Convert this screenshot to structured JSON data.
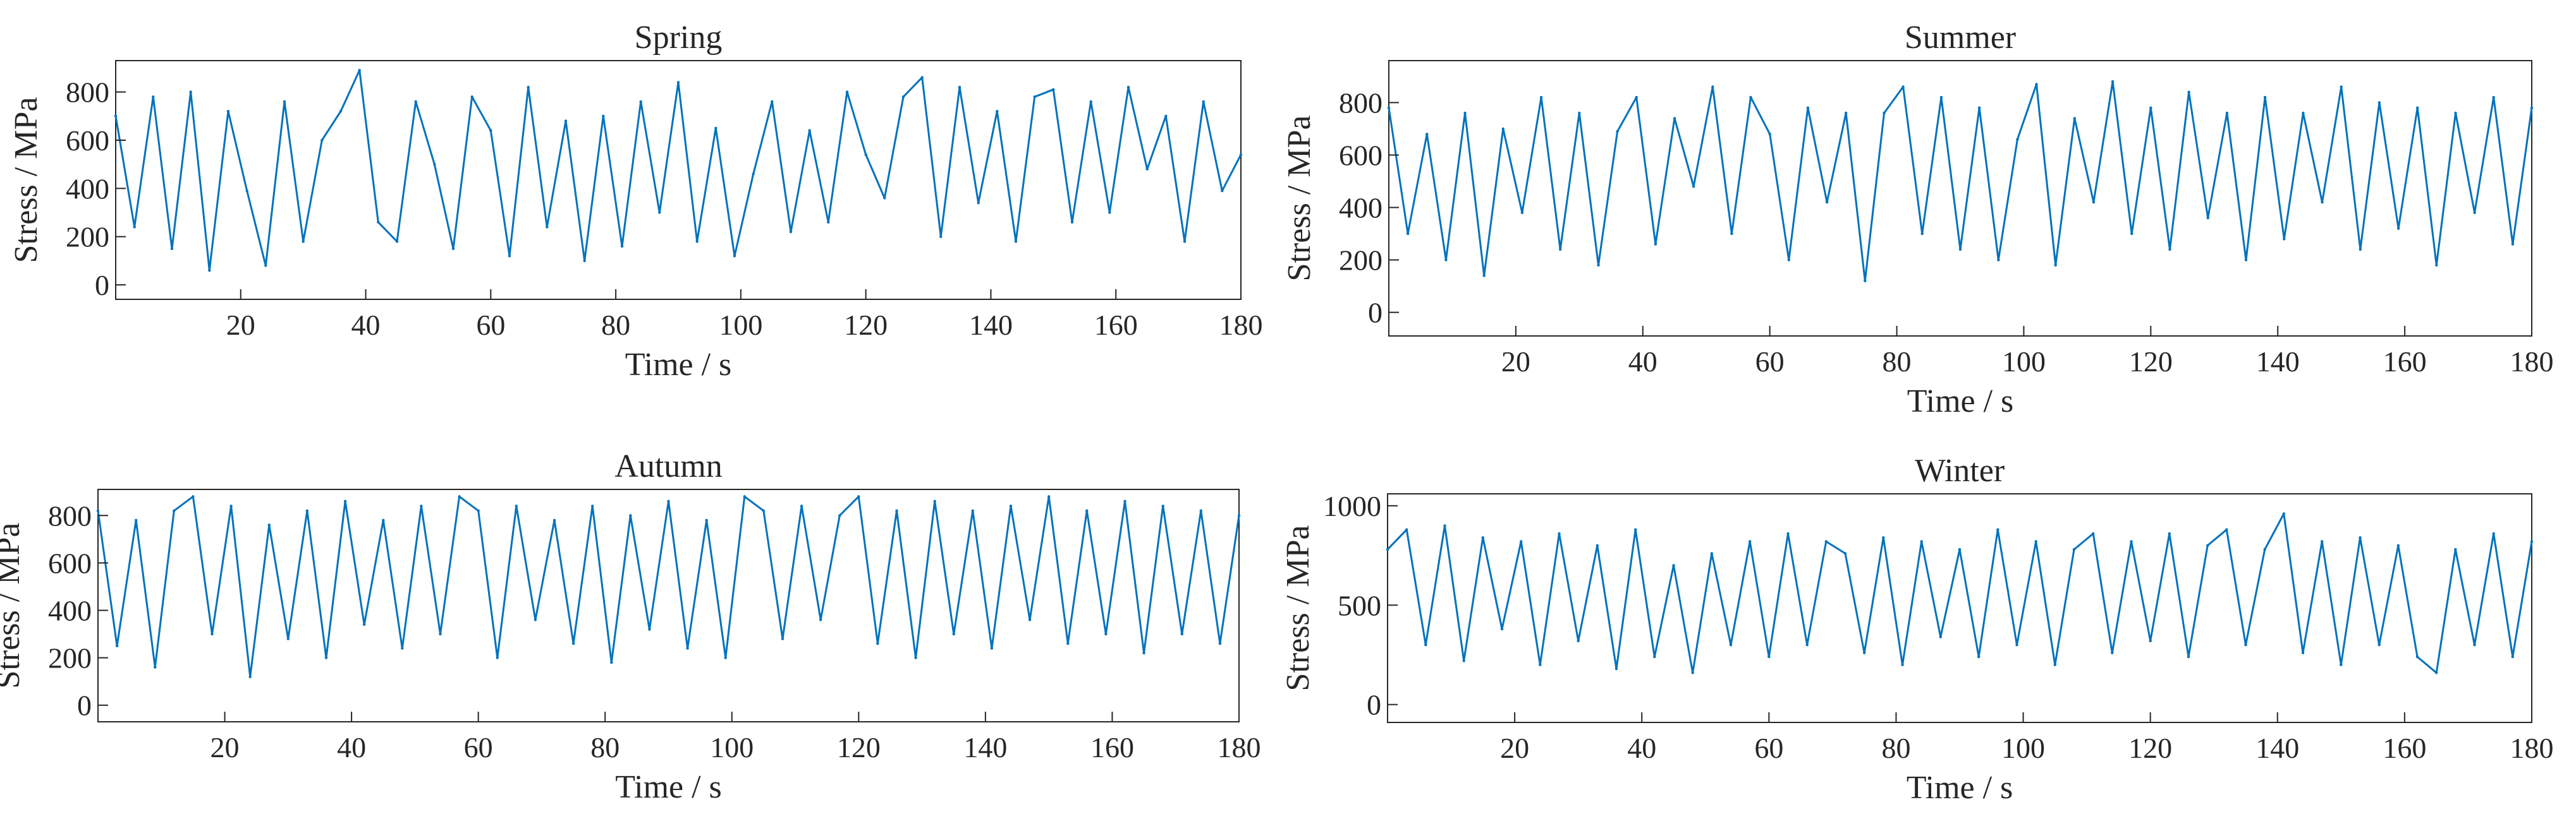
{
  "colors": {
    "series": "#0072BD",
    "axes": "#262626",
    "background": "#ffffff"
  },
  "chart_data": [
    {
      "type": "line",
      "title": "Spring",
      "xlabel": "Time / s",
      "ylabel": "Stress / MPa",
      "xlim": [
        0,
        180
      ],
      "ylim": [
        -60,
        930
      ],
      "xticks": [
        20,
        40,
        60,
        80,
        100,
        120,
        140,
        160,
        180
      ],
      "yticks": [
        0,
        200,
        400,
        600,
        800
      ],
      "grid": false,
      "series": [
        {
          "x": [
            0,
            3,
            6,
            9,
            12,
            15,
            18,
            21,
            24,
            27,
            30,
            33,
            36,
            39,
            42,
            45,
            48,
            51,
            54,
            57,
            60,
            63,
            66,
            69,
            72,
            75,
            78,
            81,
            84,
            87,
            90,
            93,
            96,
            99,
            102,
            105,
            108,
            111,
            114,
            117,
            120,
            123,
            126,
            129,
            132,
            135,
            138,
            141,
            144,
            147,
            150,
            153,
            156,
            159,
            162,
            165,
            168,
            171,
            174,
            177,
            180
          ],
          "y": [
            700,
            240,
            780,
            150,
            800,
            60,
            720,
            390,
            80,
            760,
            180,
            600,
            720,
            890,
            260,
            180,
            760,
            500,
            150,
            780,
            640,
            120,
            820,
            240,
            680,
            100,
            700,
            160,
            760,
            300,
            840,
            180,
            650,
            120,
            460,
            760,
            220,
            640,
            260,
            800,
            540,
            360,
            780,
            860,
            200,
            820,
            340,
            720,
            180,
            780,
            810,
            260,
            760,
            300,
            820,
            480,
            700,
            180,
            760,
            390,
            540
          ]
        }
      ]
    },
    {
      "type": "line",
      "title": "Summer",
      "xlabel": "Time / s",
      "ylabel": "Stress / MPa",
      "xlim": [
        0,
        180
      ],
      "ylim": [
        -90,
        960
      ],
      "xticks": [
        20,
        40,
        60,
        80,
        100,
        120,
        140,
        160,
        180
      ],
      "yticks": [
        0,
        200,
        400,
        600,
        800
      ],
      "grid": false,
      "series": [
        {
          "x": [
            0,
            3,
            6,
            9,
            12,
            15,
            18,
            21,
            24,
            27,
            30,
            33,
            36,
            39,
            42,
            45,
            48,
            51,
            54,
            57,
            60,
            63,
            66,
            69,
            72,
            75,
            78,
            81,
            84,
            87,
            90,
            93,
            96,
            99,
            102,
            105,
            108,
            111,
            114,
            117,
            120,
            123,
            126,
            129,
            132,
            135,
            138,
            141,
            144,
            147,
            150,
            153,
            156,
            159,
            162,
            165,
            168,
            171,
            174,
            177,
            180
          ],
          "y": [
            780,
            300,
            680,
            200,
            760,
            140,
            700,
            380,
            820,
            240,
            760,
            180,
            690,
            820,
            260,
            740,
            480,
            860,
            300,
            820,
            680,
            200,
            780,
            420,
            760,
            120,
            760,
            860,
            300,
            820,
            240,
            780,
            200,
            660,
            870,
            180,
            740,
            420,
            880,
            300,
            780,
            240,
            840,
            360,
            760,
            200,
            820,
            280,
            760,
            420,
            860,
            240,
            800,
            320,
            780,
            180,
            760,
            380,
            820,
            260,
            780
          ]
        }
      ]
    },
    {
      "type": "line",
      "title": "Autumn",
      "xlabel": "Time / s",
      "ylabel": "Stress / MPa",
      "xlim": [
        0,
        180
      ],
      "ylim": [
        -70,
        910
      ],
      "xticks": [
        20,
        40,
        60,
        80,
        100,
        120,
        140,
        160,
        180
      ],
      "yticks": [
        0,
        200,
        400,
        600,
        800
      ],
      "grid": false,
      "series": [
        {
          "x": [
            0,
            3,
            6,
            9,
            12,
            15,
            18,
            21,
            24,
            27,
            30,
            33,
            36,
            39,
            42,
            45,
            48,
            51,
            54,
            57,
            60,
            63,
            66,
            69,
            72,
            75,
            78,
            81,
            84,
            87,
            90,
            93,
            96,
            99,
            102,
            105,
            108,
            111,
            114,
            117,
            120,
            123,
            126,
            129,
            132,
            135,
            138,
            141,
            144,
            147,
            150,
            153,
            156,
            159,
            162,
            165,
            168,
            171,
            174,
            177,
            180
          ],
          "y": [
            820,
            250,
            780,
            160,
            820,
            880,
            300,
            840,
            120,
            760,
            280,
            820,
            200,
            860,
            340,
            780,
            240,
            840,
            300,
            880,
            820,
            200,
            840,
            360,
            780,
            260,
            840,
            180,
            800,
            320,
            860,
            240,
            780,
            200,
            880,
            820,
            280,
            840,
            360,
            800,
            880,
            260,
            820,
            200,
            860,
            300,
            820,
            240,
            840,
            360,
            880,
            260,
            820,
            300,
            860,
            220,
            840,
            300,
            820,
            260,
            800
          ]
        }
      ]
    },
    {
      "type": "line",
      "title": "Winter",
      "xlabel": "Time / s",
      "ylabel": "Stress / MPa",
      "xlim": [
        0,
        180
      ],
      "ylim": [
        -90,
        1060
      ],
      "xticks": [
        20,
        40,
        60,
        80,
        100,
        120,
        140,
        160,
        180
      ],
      "yticks": [
        0,
        500,
        1000
      ],
      "grid": false,
      "series": [
        {
          "x": [
            0,
            3,
            6,
            9,
            12,
            15,
            18,
            21,
            24,
            27,
            30,
            33,
            36,
            39,
            42,
            45,
            48,
            51,
            54,
            57,
            60,
            63,
            66,
            69,
            72,
            75,
            78,
            81,
            84,
            87,
            90,
            93,
            96,
            99,
            102,
            105,
            108,
            111,
            114,
            117,
            120,
            123,
            126,
            129,
            132,
            135,
            138,
            141,
            144,
            147,
            150,
            153,
            156,
            159,
            162,
            165,
            168,
            171,
            174,
            177,
            180
          ],
          "y": [
            780,
            880,
            300,
            900,
            220,
            840,
            380,
            820,
            200,
            860,
            320,
            800,
            180,
            880,
            240,
            700,
            160,
            760,
            300,
            820,
            240,
            860,
            300,
            820,
            760,
            260,
            840,
            200,
            820,
            340,
            780,
            240,
            880,
            300,
            820,
            200,
            780,
            860,
            260,
            820,
            320,
            860,
            240,
            800,
            880,
            300,
            780,
            960,
            260,
            820,
            200,
            840,
            300,
            800,
            240,
            160,
            780,
            300,
            860,
            240,
            820
          ]
        }
      ]
    }
  ]
}
